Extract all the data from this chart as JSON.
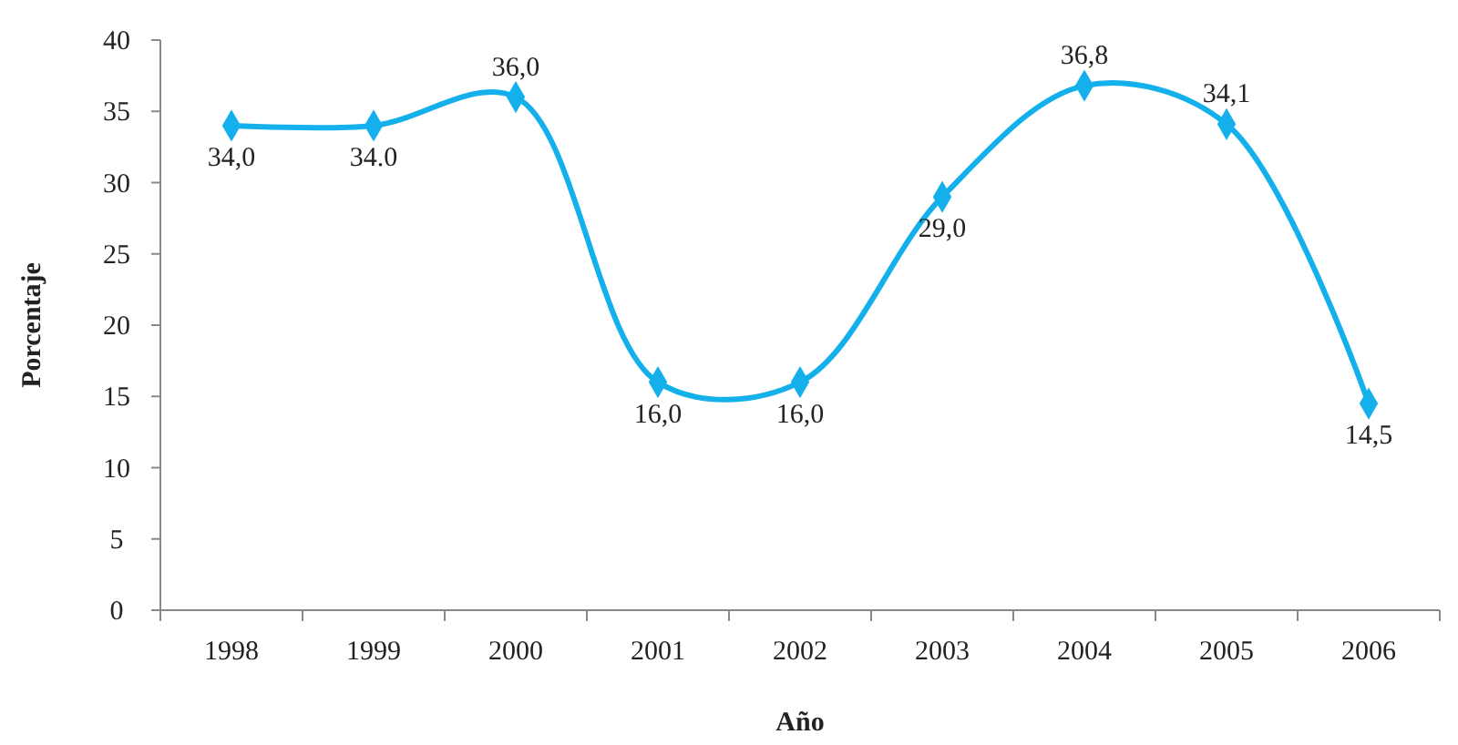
{
  "chart_data": {
    "type": "line",
    "xlabel": "Año",
    "ylabel": "Porcentaje",
    "categories": [
      "1998",
      "1999",
      "2000",
      "2001",
      "2002",
      "2003",
      "2004",
      "2005",
      "2006"
    ],
    "series": [
      {
        "color": "#14b0ec",
        "values": [
          34.0,
          34.0,
          36.0,
          16.0,
          16.0,
          29.0,
          36.8,
          34.1,
          14.5
        ],
        "value_labels": [
          "34,0",
          "34.0",
          "36,0",
          "16,0",
          "16,0",
          "29,0",
          "36,8",
          "34,1",
          "14,5"
        ]
      }
    ],
    "ylim": [
      0,
      40
    ],
    "yticks": [
      0,
      5,
      10,
      15,
      20,
      25,
      30,
      35,
      40
    ],
    "grid": false,
    "marker": "diamond",
    "line_style": "solid"
  }
}
